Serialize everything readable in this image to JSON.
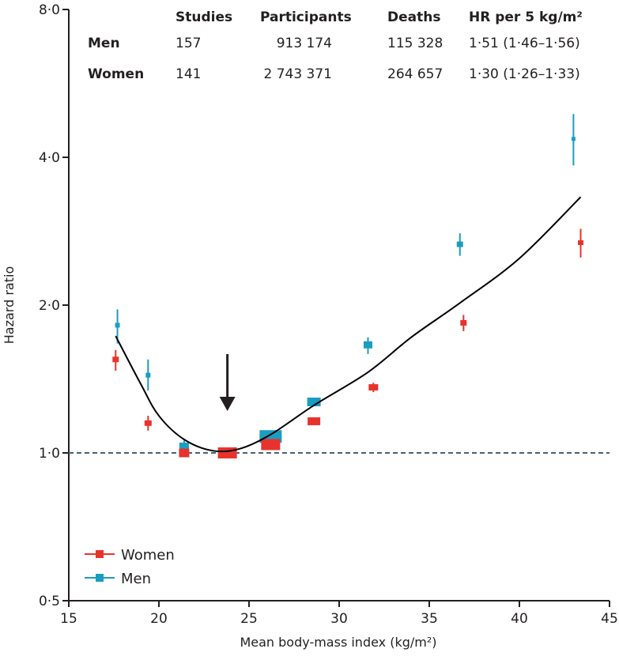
{
  "chart_data": {
    "type": "scatter",
    "xlabel": "Mean body-mass index (kg/m²)",
    "ylabel": "Hazard ratio",
    "xlim": [
      15,
      45
    ],
    "ylim": [
      0.5,
      8.0
    ],
    "y_scale": "log2",
    "x_ticks": [
      15,
      20,
      25,
      30,
      35,
      40,
      45
    ],
    "x_tick_labels": [
      "15",
      "20",
      "25",
      "30",
      "35",
      "40",
      "45"
    ],
    "y_ticks": [
      0.5,
      1.0,
      2.0,
      4.0,
      8.0
    ],
    "y_tick_labels": [
      "0·5",
      "1·0",
      "2·0",
      "4·0",
      "8·0"
    ],
    "reference_line": 1.0,
    "grid": false,
    "legend_placement": "bottom-left",
    "colors": {
      "Women": "#e8332d",
      "Men": "#1a9dc0",
      "curve": "#000000",
      "reference": "#4a6270"
    },
    "series": [
      {
        "name": "Women",
        "points": [
          {
            "x": 17.6,
            "y": 1.55,
            "lo": 1.47,
            "hi": 1.62
          },
          {
            "x": 19.4,
            "y": 1.15,
            "lo": 1.11,
            "hi": 1.19
          },
          {
            "x": 21.4,
            "y": 1.0,
            "lo": 0.98,
            "hi": 1.02
          },
          {
            "x": 23.8,
            "y": 1.0,
            "lo": 0.99,
            "hi": 1.01
          },
          {
            "x": 26.2,
            "y": 1.04,
            "lo": 1.03,
            "hi": 1.05
          },
          {
            "x": 28.6,
            "y": 1.16,
            "lo": 1.15,
            "hi": 1.17
          },
          {
            "x": 31.9,
            "y": 1.36,
            "lo": 1.33,
            "hi": 1.39
          },
          {
            "x": 36.9,
            "y": 1.84,
            "lo": 1.77,
            "hi": 1.91
          },
          {
            "x": 43.4,
            "y": 2.68,
            "lo": 2.5,
            "hi": 2.86
          }
        ]
      },
      {
        "name": "Men",
        "points": [
          {
            "x": 17.7,
            "y": 1.82,
            "lo": 1.67,
            "hi": 1.96
          },
          {
            "x": 19.4,
            "y": 1.44,
            "lo": 1.34,
            "hi": 1.55
          },
          {
            "x": 21.4,
            "y": 1.03,
            "lo": 1.0,
            "hi": 1.06
          },
          {
            "x": 26.2,
            "y": 1.08,
            "lo": 1.07,
            "hi": 1.09
          },
          {
            "x": 28.6,
            "y": 1.27,
            "lo": 1.26,
            "hi": 1.28
          },
          {
            "x": 31.6,
            "y": 1.66,
            "lo": 1.59,
            "hi": 1.72
          },
          {
            "x": 36.7,
            "y": 2.66,
            "lo": 2.52,
            "hi": 2.8
          },
          {
            "x": 43.0,
            "y": 4.36,
            "lo": 3.85,
            "hi": 4.9
          }
        ]
      }
    ],
    "fitted_curve": [
      {
        "x": 17.6,
        "y": 1.73
      },
      {
        "x": 19.0,
        "y": 1.38
      },
      {
        "x": 20.0,
        "y": 1.19
      },
      {
        "x": 21.4,
        "y": 1.065
      },
      {
        "x": 23.0,
        "y": 1.01
      },
      {
        "x": 24.5,
        "y": 1.02
      },
      {
        "x": 26.2,
        "y": 1.09
      },
      {
        "x": 28.6,
        "y": 1.25
      },
      {
        "x": 31.6,
        "y": 1.46
      },
      {
        "x": 34.0,
        "y": 1.72
      },
      {
        "x": 36.7,
        "y": 2.02
      },
      {
        "x": 40.0,
        "y": 2.49
      },
      {
        "x": 43.4,
        "y": 3.32
      }
    ],
    "arrow_at_x": 23.8,
    "table": {
      "headers": [
        "",
        "Studies",
        "Participants",
        "Deaths",
        "HR per 5 kg/m²"
      ],
      "rows": [
        [
          "Men",
          "157",
          "913 174",
          "115 328",
          "1·51 (1·46–1·56)"
        ],
        [
          "Women",
          "141",
          "2 743 371",
          "264 657",
          "1·30 (1·26–1·33)"
        ]
      ]
    },
    "legend": [
      "Women",
      "Men"
    ]
  }
}
